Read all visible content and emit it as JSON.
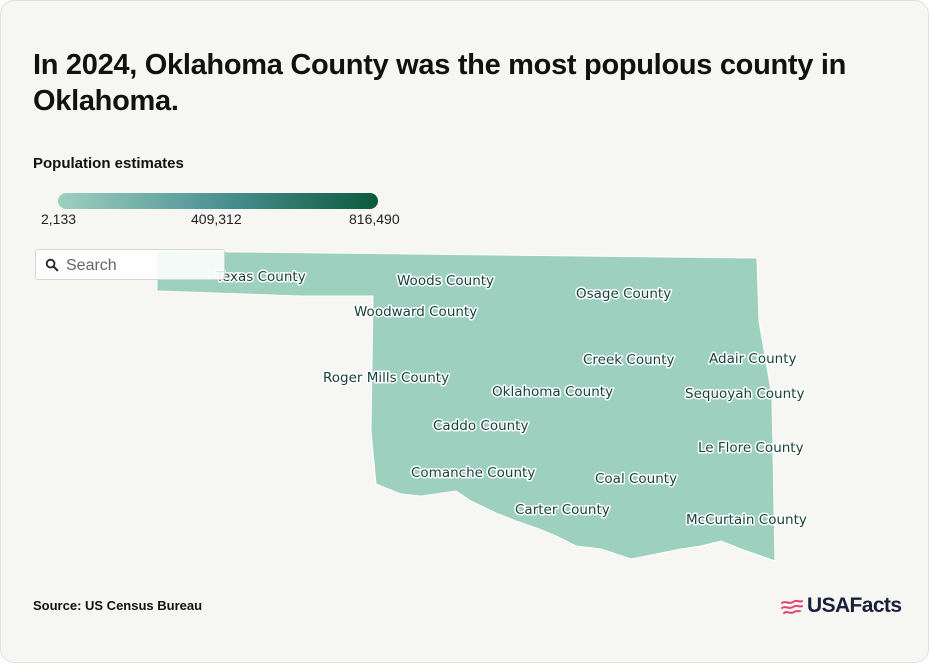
{
  "title": "In 2024, Oklahoma County was the most populous county in Oklahoma.",
  "legend": {
    "title": "Population estimates",
    "min_label": "2,133",
    "mid_label": "409,312",
    "max_label": "816,490",
    "min": 2133,
    "mid": 409312,
    "max": 816490,
    "colors": [
      "#9ed0c0",
      "#4e9295",
      "#0b5a3d"
    ]
  },
  "search": {
    "placeholder": "Search",
    "icon": "search-icon"
  },
  "source": "Source: US Census Bureau",
  "brand": {
    "name": "USAFacts",
    "icon": "us-flag-icon",
    "accent": "#e2447a"
  },
  "county_labels": [
    "Texas County",
    "Woods County",
    "Osage County",
    "Woodward County",
    "Creek County",
    "Adair County",
    "Roger Mills County",
    "Oklahoma County",
    "Sequoyah County",
    "Caddo County",
    "Le Flore County",
    "Comanche County",
    "Coal County",
    "Carter County",
    "McCurtain County"
  ]
}
